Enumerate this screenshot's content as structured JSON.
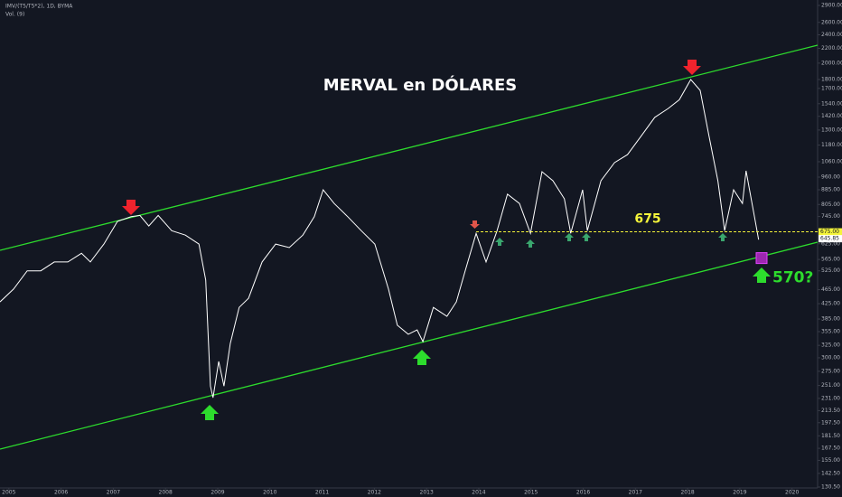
{
  "chart_data": {
    "type": "line",
    "title": "MERVAL en DÓLARES",
    "symbol": "IMV/(T5/T5*2), 1D, BYMA",
    "indicator": "Vol. (9)",
    "color": "#ffffff",
    "log_scale": true,
    "x": [
      2004.83,
      2005.09,
      2005.35,
      2005.61,
      2005.87,
      2006.13,
      2006.39,
      2006.56,
      2006.82,
      2007.08,
      2007.34,
      2007.51,
      2007.68,
      2007.86,
      2008.12,
      2008.38,
      2008.64,
      2008.77,
      2008.86,
      2008.91,
      2009.02,
      2009.12,
      2009.24,
      2009.41,
      2009.59,
      2009.85,
      2010.11,
      2010.37,
      2010.63,
      2010.85,
      2011.02,
      2011.23,
      2011.49,
      2011.75,
      2012.01,
      2012.27,
      2012.44,
      2012.65,
      2012.82,
      2012.93,
      2013.13,
      2013.39,
      2013.57,
      2013.74,
      2013.95,
      2014.14,
      2014.35,
      2014.55,
      2014.78,
      2014.99,
      2015.21,
      2015.42,
      2015.64,
      2015.76,
      2015.99,
      2016.08,
      2016.34,
      2016.6,
      2016.85,
      2017.11,
      2017.37,
      2017.63,
      2017.84,
      2018.06,
      2018.24,
      2018.41,
      2018.58,
      2018.71,
      2018.88,
      2019.05,
      2019.12,
      2019.28,
      2019.36
    ],
    "values": [
      430,
      467,
      525,
      525,
      556,
      556,
      588,
      556,
      624,
      722,
      744,
      750,
      701,
      750,
      680,
      661,
      624,
      495,
      250,
      232,
      293,
      250,
      329,
      415,
      440,
      556,
      624,
      610,
      661,
      744,
      885,
      810,
      744,
      680,
      624,
      467,
      370,
      349,
      359,
      333,
      415,
      392,
      430,
      525,
      668,
      556,
      680,
      860,
      810,
      668,
      994,
      938,
      835,
      668,
      885,
      680,
      938,
      1054,
      1110,
      1250,
      1410,
      1494,
      1580,
      1800,
      1678,
      1250,
      938,
      680,
      885,
      810,
      1000,
      744,
      642
    ],
    "xlim": [
      2004.83,
      2020.49
    ],
    "xticks": [
      2005,
      2006,
      2007,
      2008,
      2009,
      2010,
      2011,
      2012,
      2013,
      2014,
      2015,
      2016,
      2017,
      2018,
      2019,
      2020
    ],
    "ylim": [
      130.5,
      2900
    ],
    "yticks": [
      {
        "value": 2900,
        "label": "2900.00"
      },
      {
        "value": 2600,
        "label": "2600.00"
      },
      {
        "value": 2400,
        "label": "2400.00"
      },
      {
        "value": 2200,
        "label": "2200.00"
      },
      {
        "value": 2000,
        "label": "2000.00"
      },
      {
        "value": 1800,
        "label": "1800.00"
      },
      {
        "value": 1700,
        "label": "1700.00"
      },
      {
        "value": 1540,
        "label": "1540.00"
      },
      {
        "value": 1420,
        "label": "1420.00"
      },
      {
        "value": 1300,
        "label": "1300.00"
      },
      {
        "value": 1180,
        "label": "1180.00"
      },
      {
        "value": 1060,
        "label": "1060.00"
      },
      {
        "value": 960,
        "label": "960.00"
      },
      {
        "value": 885,
        "label": "885.00"
      },
      {
        "value": 805,
        "label": "805.00"
      },
      {
        "value": 745,
        "label": "745.00"
      },
      {
        "value": 625,
        "label": "625.00"
      },
      {
        "value": 565,
        "label": "565.00"
      },
      {
        "value": 525,
        "label": "525.00"
      },
      {
        "value": 465,
        "label": "465.00"
      },
      {
        "value": 425,
        "label": "425.00"
      },
      {
        "value": 385,
        "label": "385.00"
      },
      {
        "value": 355,
        "label": "355.00"
      },
      {
        "value": 325,
        "label": "325.00"
      },
      {
        "value": 300,
        "label": "300.00"
      },
      {
        "value": 275,
        "label": "275.00"
      },
      {
        "value": 251,
        "label": "251.00"
      },
      {
        "value": 231,
        "label": "231.00"
      },
      {
        "value": 213.5,
        "label": "213.50"
      },
      {
        "value": 197.5,
        "label": "197.50"
      },
      {
        "value": 181.5,
        "label": "181.50"
      },
      {
        "value": 167.5,
        "label": "167.50"
      },
      {
        "value": 155,
        "label": "155.00"
      },
      {
        "value": 142.5,
        "label": "142.50"
      },
      {
        "value": 130.5,
        "label": "130.50"
      }
    ],
    "price_labels": [
      {
        "value": 675,
        "label": "675.00"
      },
      {
        "value": 645.85,
        "label": "645.85"
      }
    ],
    "level": 675,
    "level_start": 2013.95,
    "target": {
      "value": 570,
      "label": "570?"
    }
  }
}
